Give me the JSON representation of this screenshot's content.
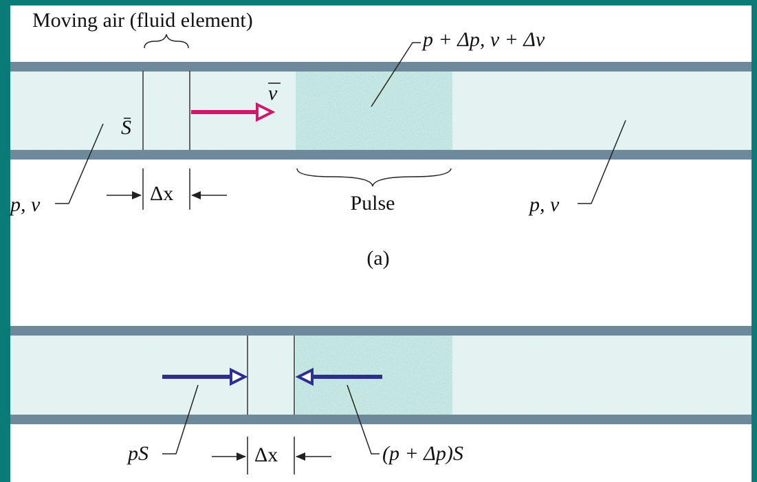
{
  "panel_a": {
    "element_label": "Moving air (fluid element)",
    "pulse_state_label": "p + Δp, v + Δv",
    "velocity_label": "v",
    "area_label": "S",
    "left_state_label": "p, v",
    "width_label": "Δx",
    "pulse_label": "Pulse",
    "right_state_label": "p, v",
    "caption": "(a)"
  },
  "panel_b": {
    "left_force_label": "pS",
    "width_label": "Δx",
    "right_force_label": "(p + Δp)S"
  }
}
